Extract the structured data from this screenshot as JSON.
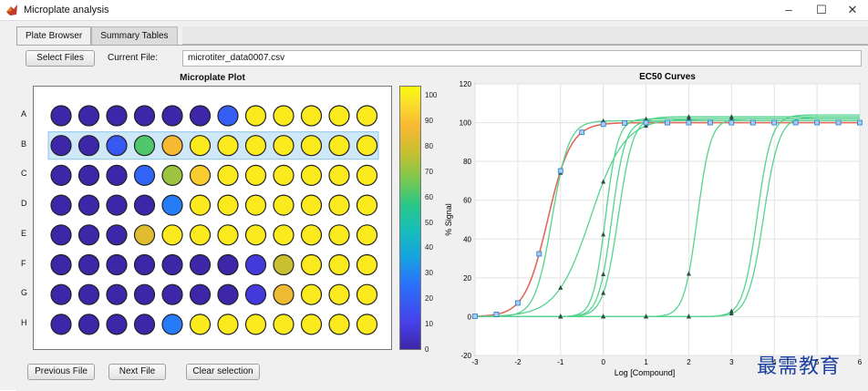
{
  "window": {
    "title": "Microplate analysis",
    "minimize": "–",
    "maximize": "☐",
    "close": "✕"
  },
  "tabs": [
    {
      "label": "Plate Browser",
      "active": true
    },
    {
      "label": "Summary Tables",
      "active": false
    }
  ],
  "toolbar": {
    "select_files_label": "Select Files",
    "current_file_label": "Current File:",
    "current_file_value": "microtiter_data0007.csv"
  },
  "plate": {
    "title": "Microplate Plot",
    "row_labels": [
      "A",
      "B",
      "C",
      "D",
      "E",
      "F",
      "G",
      "H"
    ],
    "selected_row": "B",
    "signal": [
      [
        0,
        0,
        0,
        0,
        0,
        0,
        20,
        100,
        100,
        100,
        100,
        100
      ],
      [
        0,
        0,
        18,
        62,
        88,
        100,
        100,
        100,
        100,
        100,
        100,
        100
      ],
      [
        0,
        0,
        0,
        22,
        72,
        93,
        100,
        100,
        100,
        100,
        100,
        100
      ],
      [
        0,
        0,
        0,
        0,
        28,
        100,
        100,
        100,
        100,
        100,
        100,
        100
      ],
      [
        0,
        0,
        0,
        83,
        100,
        100,
        100,
        100,
        100,
        100,
        100,
        100
      ],
      [
        0,
        0,
        0,
        0,
        0,
        0,
        0,
        8,
        78,
        100,
        100,
        100
      ],
      [
        0,
        0,
        0,
        0,
        0,
        0,
        0,
        8,
        86,
        100,
        100,
        100
      ],
      [
        0,
        0,
        0,
        0,
        28,
        100,
        100,
        100,
        100,
        100,
        100,
        100
      ]
    ]
  },
  "colorbar": {
    "ticks": [
      0,
      10,
      20,
      30,
      40,
      50,
      60,
      70,
      80,
      90,
      100
    ],
    "min": 0,
    "max": 104
  },
  "chart_data": {
    "type": "line",
    "title": "EC50 Curves",
    "xlabel": "Log [Compound]",
    "ylabel": "% Signal",
    "xlim": [
      -3,
      6
    ],
    "ylim": [
      -20,
      120
    ],
    "xticks": [
      -3,
      -2,
      -1,
      0,
      1,
      2,
      3,
      4,
      5,
      6
    ],
    "yticks": [
      -20,
      0,
      20,
      40,
      60,
      80,
      100,
      120
    ],
    "grid": true,
    "highlight_color": "#e06a5a",
    "series_color": "#55d38f",
    "series": [
      {
        "ec50": -1.3,
        "hill": 1.6,
        "top": 100,
        "bottom": 0,
        "highlight": true
      },
      {
        "ec50": -1.2,
        "hill": 2.2,
        "top": 101,
        "bottom": 0
      },
      {
        "ec50": -0.3,
        "hill": 1.1,
        "top": 102,
        "bottom": 0
      },
      {
        "ec50": 0.05,
        "hill": 3.0,
        "top": 102,
        "bottom": 0
      },
      {
        "ec50": 0.2,
        "hill": 2.8,
        "top": 101,
        "bottom": 0
      },
      {
        "ec50": 0.35,
        "hill": 2.5,
        "top": 103,
        "bottom": 0
      },
      {
        "ec50": 2.2,
        "hill": 2.8,
        "top": 102,
        "bottom": 0
      },
      {
        "ec50": 3.6,
        "hill": 2.6,
        "top": 104,
        "bottom": 0
      },
      {
        "ec50": 3.75,
        "hill": 2.4,
        "top": 103,
        "bottom": 0
      }
    ],
    "highlight_points_x": [
      -3,
      -2.5,
      -2,
      -1.5,
      -1,
      -0.5,
      0,
      0.5,
      1,
      1.5,
      2,
      2.5,
      3,
      3.5,
      4,
      4.5,
      5,
      5.5,
      6
    ]
  },
  "footer": {
    "previous_label": "Previous File",
    "next_label": "Next File",
    "clear_label": "Clear selection"
  },
  "watermark": "最需教育"
}
